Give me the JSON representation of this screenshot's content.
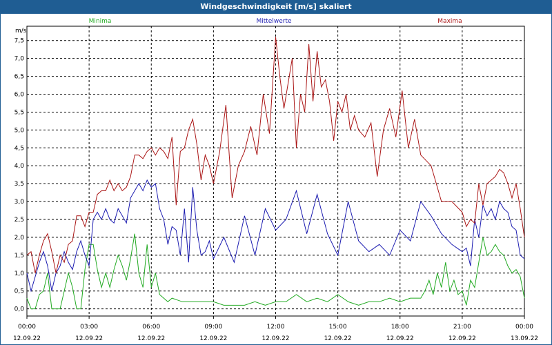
{
  "window": {
    "title": "Windgeschwindigkeit [m/s] skaliert"
  },
  "chart_data": {
    "type": "line",
    "title": "Windgeschwindigkeit [m/s] skaliert",
    "ylabel": "m/s",
    "xlabel": "",
    "ylim": [
      -0.2,
      7.9
    ],
    "xlim": [
      0,
      24
    ],
    "grid": true,
    "legend": "top",
    "yticks": [
      "0,0",
      "0,5",
      "1,0",
      "1,5",
      "2,0",
      "2,5",
      "3,0",
      "3,5",
      "4,0",
      "4,5",
      "5,0",
      "5,5",
      "6,0",
      "6,5",
      "7,0",
      "7,5"
    ],
    "ytick_values": [
      0,
      0.5,
      1,
      1.5,
      2,
      2.5,
      3,
      3.5,
      4,
      4.5,
      5,
      5.5,
      6,
      6.5,
      7,
      7.5
    ],
    "xticks": [
      {
        "time": "00:00",
        "date": "12.09.22"
      },
      {
        "time": "03:00",
        "date": "12.09.22"
      },
      {
        "time": "06:00",
        "date": "12.09.22"
      },
      {
        "time": "09:00",
        "date": "12.09.22"
      },
      {
        "time": "12:00",
        "date": "12.09.22"
      },
      {
        "time": "15:00",
        "date": "12.09.22"
      },
      {
        "time": "18:00",
        "date": "12.09.22"
      },
      {
        "time": "21:00",
        "date": "12.09.22"
      },
      {
        "time": "00:00",
        "date": "13.09.22"
      }
    ],
    "xtick_hours": [
      0,
      3,
      6,
      9,
      12,
      15,
      18,
      21,
      24
    ],
    "series": [
      {
        "name": "Minima",
        "color": "#22aa22",
        "x": [
          0,
          0.2,
          0.4,
          0.6,
          0.8,
          1,
          1.2,
          1.4,
          1.6,
          1.8,
          2,
          2.2,
          2.4,
          2.6,
          2.8,
          3,
          3.2,
          3.4,
          3.6,
          3.8,
          4,
          4.2,
          4.4,
          4.6,
          4.8,
          5,
          5.2,
          5.4,
          5.6,
          5.8,
          6,
          6.2,
          6.4,
          6.6,
          6.8,
          7,
          7.5,
          8,
          8.5,
          9,
          9.5,
          10,
          10.5,
          11,
          11.5,
          12,
          12.5,
          13,
          13.5,
          14,
          14.5,
          15,
          15.5,
          16,
          16.5,
          17,
          17.5,
          18,
          18.5,
          19,
          19.2,
          19.4,
          19.6,
          19.8,
          20,
          20.2,
          20.4,
          20.6,
          20.8,
          21,
          21.2,
          21.4,
          21.6,
          21.8,
          22,
          22.2,
          22.4,
          22.6,
          22.8,
          23,
          23.2,
          23.4,
          23.6,
          23.8,
          24
        ],
        "values": [
          0.3,
          0.0,
          0.0,
          0.4,
          0.5,
          1.0,
          0.0,
          0.0,
          0.0,
          0.5,
          1.0,
          0.6,
          0.0,
          0.0,
          1.1,
          1.8,
          1.8,
          1.1,
          0.6,
          1.0,
          0.6,
          1.1,
          1.5,
          1.2,
          0.8,
          1.4,
          2.1,
          1.0,
          0.6,
          1.8,
          0.6,
          1.0,
          0.4,
          0.3,
          0.2,
          0.3,
          0.2,
          0.2,
          0.2,
          0.2,
          0.1,
          0.1,
          0.1,
          0.2,
          0.1,
          0.2,
          0.2,
          0.4,
          0.2,
          0.3,
          0.2,
          0.4,
          0.2,
          0.1,
          0.2,
          0.2,
          0.3,
          0.2,
          0.3,
          0.3,
          0.5,
          0.8,
          0.4,
          1.0,
          0.6,
          1.3,
          0.5,
          0.8,
          0.4,
          0.5,
          0.1,
          0.8,
          0.6,
          1.3,
          2.0,
          1.5,
          1.6,
          1.8,
          1.6,
          1.5,
          1.2,
          1.0,
          1.1,
          0.9,
          0.3
        ]
      },
      {
        "name": "Mittelwerte",
        "color": "#1b1bb0",
        "x": [
          0,
          0.2,
          0.4,
          0.6,
          0.8,
          1,
          1.2,
          1.4,
          1.6,
          1.8,
          2,
          2.2,
          2.4,
          2.6,
          2.8,
          3,
          3.2,
          3.4,
          3.6,
          3.8,
          4,
          4.2,
          4.4,
          4.6,
          4.8,
          5,
          5.2,
          5.4,
          5.6,
          5.8,
          6,
          6.2,
          6.4,
          6.6,
          6.8,
          7,
          7.2,
          7.4,
          7.6,
          7.8,
          8,
          8.2,
          8.4,
          8.6,
          8.8,
          9,
          9.5,
          10,
          10.5,
          11,
          11.5,
          12,
          12.5,
          13,
          13.5,
          14,
          14.5,
          15,
          15.5,
          16,
          16.5,
          17,
          17.5,
          18,
          18.5,
          19,
          19.5,
          20,
          20.5,
          21,
          21.2,
          21.4,
          21.6,
          21.8,
          22,
          22.2,
          22.4,
          22.6,
          22.8,
          23,
          23.2,
          23.4,
          23.6,
          23.8,
          24
        ],
        "values": [
          1.0,
          0.5,
          0.9,
          1.3,
          1.6,
          1.2,
          0.5,
          1.0,
          1.2,
          1.6,
          1.3,
          1.1,
          1.6,
          1.9,
          1.5,
          1.2,
          2.5,
          2.7,
          2.5,
          2.8,
          2.5,
          2.4,
          2.8,
          2.6,
          2.4,
          3.1,
          3.3,
          3.5,
          3.3,
          3.6,
          3.4,
          3.5,
          2.8,
          2.5,
          1.8,
          2.3,
          2.2,
          1.5,
          2.8,
          1.3,
          3.4,
          2.2,
          1.5,
          1.6,
          1.9,
          1.4,
          2.0,
          1.3,
          2.6,
          1.5,
          2.8,
          2.2,
          2.5,
          3.3,
          2.1,
          3.2,
          2.1,
          1.5,
          3.0,
          1.9,
          1.6,
          1.8,
          1.5,
          2.2,
          1.9,
          3.0,
          2.6,
          2.1,
          1.8,
          1.6,
          1.7,
          1.2,
          2.5,
          2.0,
          2.9,
          2.6,
          2.8,
          2.5,
          3.0,
          2.8,
          2.7,
          2.3,
          2.2,
          1.5,
          1.4
        ]
      },
      {
        "name": "Maxima",
        "color": "#aa1515",
        "x": [
          0,
          0.2,
          0.4,
          0.6,
          0.8,
          1,
          1.2,
          1.4,
          1.6,
          1.8,
          2,
          2.2,
          2.4,
          2.6,
          2.8,
          3,
          3.2,
          3.4,
          3.6,
          3.8,
          4,
          4.2,
          4.4,
          4.6,
          4.8,
          5,
          5.2,
          5.4,
          5.6,
          5.8,
          6,
          6.2,
          6.4,
          6.6,
          6.8,
          7,
          7.2,
          7.4,
          7.6,
          7.8,
          8,
          8.2,
          8.4,
          8.6,
          8.8,
          9,
          9.3,
          9.6,
          9.9,
          10.2,
          10.5,
          10.8,
          11.1,
          11.4,
          11.7,
          12,
          12.2,
          12.4,
          12.6,
          12.8,
          13,
          13.2,
          13.4,
          13.6,
          13.8,
          14,
          14.2,
          14.4,
          14.6,
          14.8,
          15,
          15.2,
          15.4,
          15.6,
          15.8,
          16,
          16.3,
          16.6,
          16.9,
          17.2,
          17.5,
          17.8,
          18.1,
          18.4,
          18.7,
          19,
          19.5,
          20,
          20.5,
          21,
          21.2,
          21.4,
          21.6,
          21.8,
          22,
          22.2,
          22.4,
          22.6,
          22.8,
          23,
          23.2,
          23.4,
          23.6,
          23.8,
          24
        ],
        "values": [
          1.5,
          1.6,
          1.0,
          1.5,
          1.9,
          2.1,
          1.6,
          1.0,
          1.5,
          1.3,
          1.8,
          1.9,
          2.6,
          2.6,
          2.3,
          2.7,
          2.7,
          3.2,
          3.3,
          3.3,
          3.6,
          3.3,
          3.5,
          3.3,
          3.4,
          3.7,
          4.3,
          4.3,
          4.2,
          4.4,
          4.5,
          4.3,
          4.5,
          4.4,
          4.2,
          4.8,
          2.9,
          4.4,
          4.5,
          5.0,
          5.3,
          4.6,
          3.6,
          4.3,
          4.0,
          3.5,
          4.4,
          5.7,
          3.1,
          4.0,
          4.4,
          5.1,
          4.3,
          6.0,
          4.9,
          7.6,
          6.5,
          5.6,
          6.3,
          7.0,
          4.5,
          6.0,
          5.5,
          7.4,
          5.8,
          7.2,
          6.2,
          6.4,
          5.8,
          4.7,
          5.8,
          5.5,
          6.0,
          5.0,
          5.4,
          5.0,
          4.8,
          5.2,
          3.7,
          5.0,
          5.6,
          4.8,
          6.1,
          4.5,
          5.3,
          4.3,
          4.0,
          3.0,
          3.0,
          2.7,
          2.3,
          2.5,
          2.4,
          3.5,
          2.9,
          3.5,
          3.6,
          3.7,
          3.9,
          3.8,
          3.5,
          3.1,
          3.5,
          2.8,
          2.0
        ]
      }
    ]
  }
}
